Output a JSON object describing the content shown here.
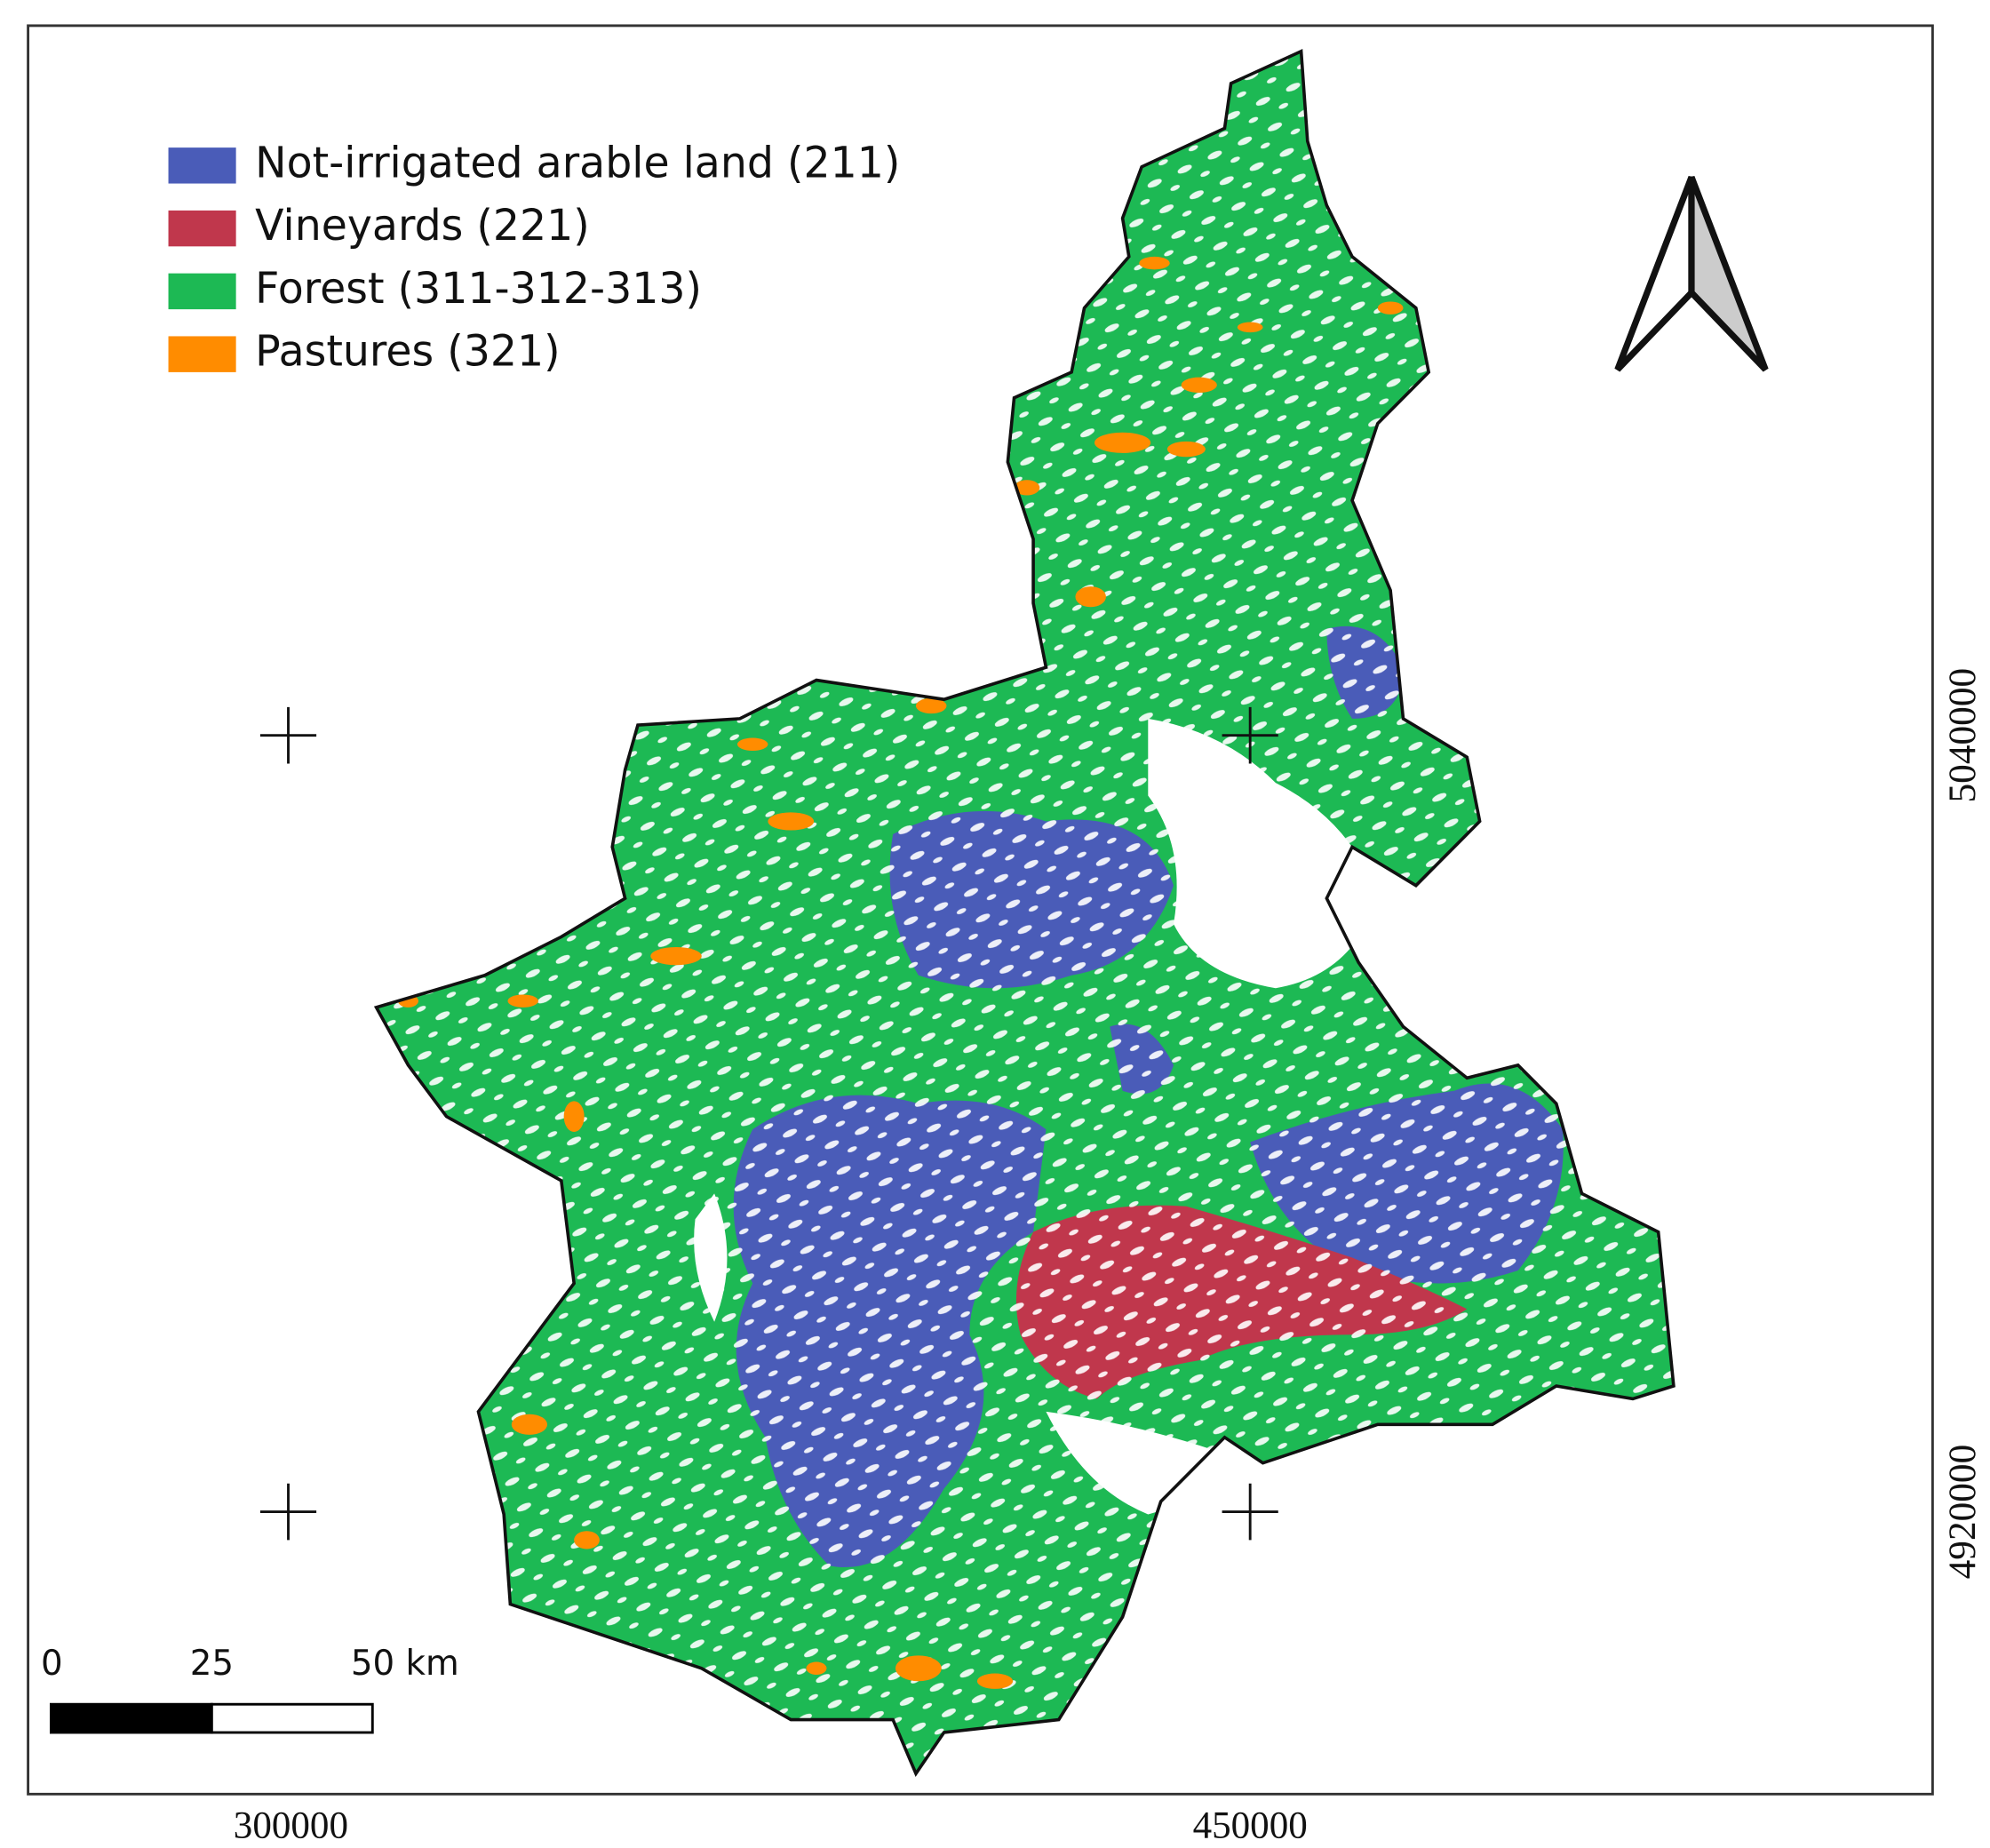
{
  "legend": {
    "items": [
      {
        "label": "Not-irrigated arable land (211)",
        "color": "#4a5cb8"
      },
      {
        "label": "Vineyards (221)",
        "color": "#c0374c"
      },
      {
        "label": "Forest (311-312-313)",
        "color": "#1db954"
      },
      {
        "label": "Pastures (321)",
        "color": "#ff8c00"
      }
    ]
  },
  "scale_bar": {
    "labels": [
      "0",
      "25",
      "50 km"
    ]
  },
  "x_labels": [
    "300000",
    "450000"
  ],
  "y_labels": [
    "5040000",
    "4920000"
  ]
}
